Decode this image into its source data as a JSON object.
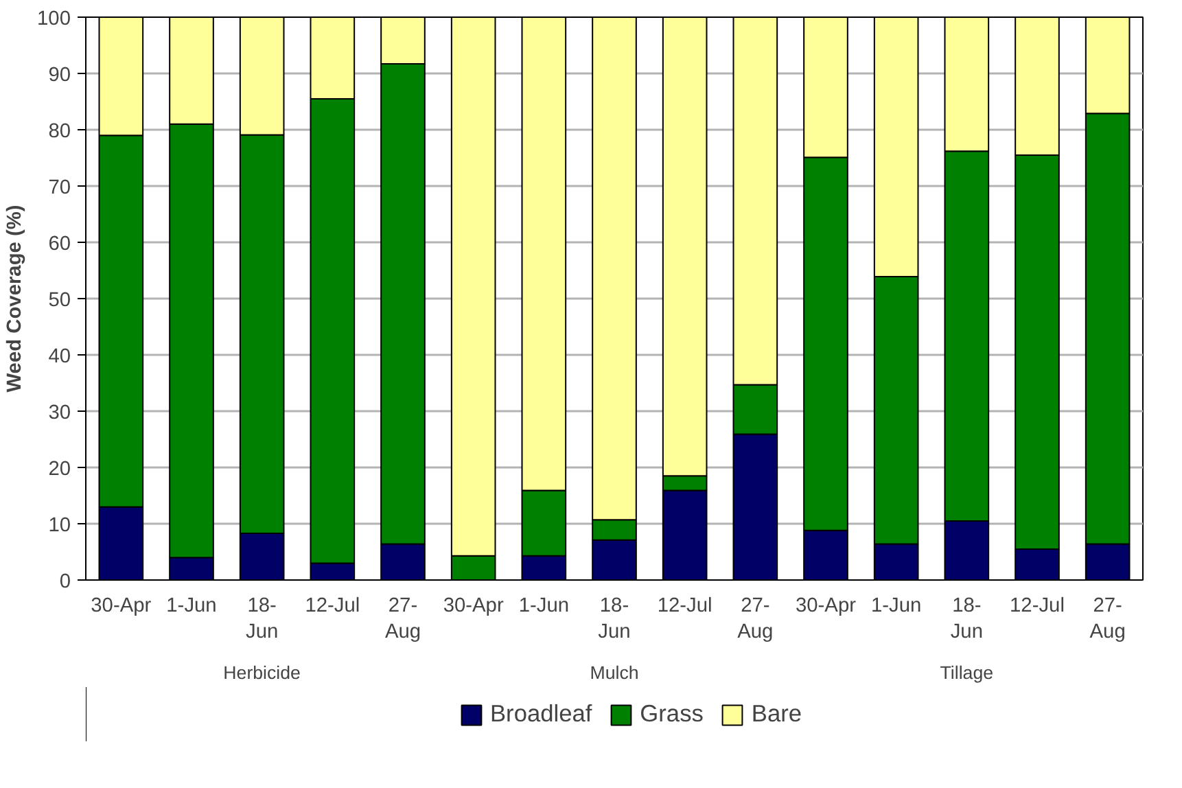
{
  "chart_data": {
    "type": "bar",
    "stacked": true,
    "ylabel": "Weed Coverage (%)",
    "categories": [
      "30-Apr",
      "1-Jun",
      "18-\nJun",
      "12-Jul",
      "27-\nAug",
      "30-Apr",
      "1-Jun",
      "18-\nJun",
      "12-Jul",
      "27-\nAug",
      "30-Apr",
      "1-Jun",
      "18-\nJun",
      "12-Jul",
      "27-\nAug"
    ],
    "series": [
      {
        "name": "Broadleaf",
        "color": "#000066",
        "values": [
          13,
          4,
          8.3,
          3,
          6.4,
          0,
          4.3,
          7.1,
          15.9,
          25.9,
          8.8,
          6.4,
          10.5,
          5.5,
          6.4
        ]
      },
      {
        "name": "Grass",
        "color": "#008000",
        "values": [
          66,
          77,
          70.8,
          82.5,
          85.3,
          4.3,
          11.6,
          3.6,
          2.6,
          8.8,
          66.3,
          47.5,
          65.7,
          70,
          76.5
        ]
      },
      {
        "name": "Bare",
        "color": "#ffff99",
        "values": [
          21,
          19,
          20.9,
          14.5,
          8.3,
          95.7,
          84.1,
          89.3,
          81.5,
          65.3,
          24.9,
          46.1,
          23.8,
          24.5,
          17.1
        ]
      }
    ],
    "annotations": [
      "Herbicide",
      "Mulch",
      "Tillage"
    ],
    "ylim": [
      0,
      100
    ],
    "yticks": [
      0,
      10,
      20,
      30,
      40,
      50,
      60,
      70,
      80,
      90,
      100
    ],
    "grid": "y",
    "legend": "bottom"
  }
}
